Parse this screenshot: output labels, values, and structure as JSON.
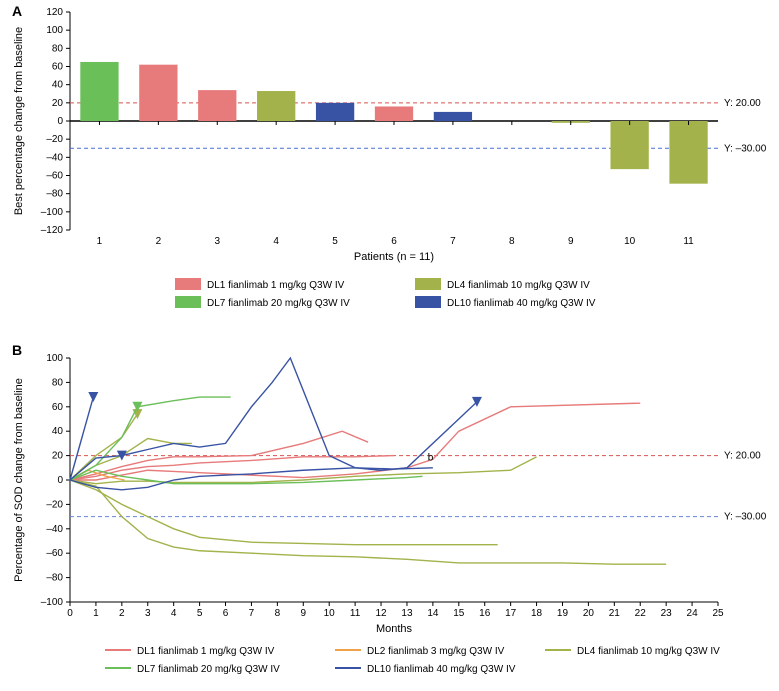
{
  "panelA": {
    "label": "A",
    "type": "bar",
    "x_title": "Patients (n = 11)",
    "y_title": "Best percentage change from baseline",
    "ylim": [
      -120,
      120
    ],
    "ytick_step": 20,
    "categories": [
      "1",
      "2",
      "3",
      "4",
      "5",
      "6",
      "7",
      "8",
      "9",
      "10",
      "11"
    ],
    "values": [
      65,
      62,
      34,
      33,
      20,
      16,
      10,
      0,
      -2,
      -53,
      -69
    ],
    "bar_colors": [
      "#6bbf59",
      "#e77a7a",
      "#e77a7a",
      "#a3b24a",
      "#3853a4",
      "#e77a7a",
      "#3853a4",
      "#a3b24a",
      "#a3b24a",
      "#a3b24a",
      "#a3b24a"
    ],
    "ref_lines": [
      {
        "y": 20,
        "label": "Y: 20.00",
        "color": "#d9534f"
      },
      {
        "y": -30,
        "label": "Y: –30.00",
        "color": "#4a6fd1"
      }
    ],
    "legend": [
      {
        "label": "DL1 fianlimab 1 mg/kg Q3W IV",
        "color": "#e77a7a"
      },
      {
        "label": "DL4 fianlimab 10 mg/kg Q3W IV",
        "color": "#a3b24a"
      },
      {
        "label": "DL7 fianlimab 20 mg/kg Q3W IV",
        "color": "#6bbf59"
      },
      {
        "label": "DL10 fianlimab 40 mg/kg Q3W IV",
        "color": "#3853a4"
      }
    ],
    "axis_fontsize": 10,
    "title_fontsize": 11,
    "background_color": "#ffffff",
    "grid_color": "#000000",
    "bar_width": 0.65
  },
  "panelB": {
    "label": "B",
    "type": "line",
    "x_title": "Months",
    "y_title": "Percentage of SOD change from baseline",
    "ylim": [
      -100,
      100
    ],
    "ytick_step": 20,
    "xlim": [
      0,
      25
    ],
    "xtick_step": 1,
    "annotation_b_x": 13.8,
    "annotation_b_y": 16,
    "ref_lines": [
      {
        "y": 20,
        "label": "Y: 20.00",
        "color": "#d9534f"
      },
      {
        "y": -30,
        "label": "Y: –30.00",
        "color": "#6a86d6"
      }
    ],
    "series": [
      {
        "color": "#e77a7a",
        "marker_at": [],
        "points": [
          [
            0,
            0
          ],
          [
            1,
            5
          ],
          [
            2,
            11
          ],
          [
            3,
            16
          ],
          [
            4,
            19
          ],
          [
            5,
            19
          ],
          [
            7,
            20
          ],
          [
            9,
            30
          ],
          [
            10.5,
            40
          ],
          [
            11.5,
            31
          ]
        ]
      },
      {
        "color": "#e77a7a",
        "marker_at": [],
        "points": [
          [
            0,
            0
          ],
          [
            1,
            0
          ],
          [
            2,
            4
          ],
          [
            3,
            8
          ],
          [
            4,
            7
          ],
          [
            5,
            6
          ],
          [
            7,
            4
          ],
          [
            9,
            2
          ],
          [
            11,
            5
          ],
          [
            13,
            10
          ],
          [
            14,
            17
          ],
          [
            15,
            40
          ],
          [
            17,
            60
          ],
          [
            22,
            63
          ]
        ]
      },
      {
        "color": "#e77a7a",
        "marker_at": [],
        "points": [
          [
            0,
            0
          ],
          [
            1,
            3
          ],
          [
            2,
            8
          ],
          [
            3,
            11
          ],
          [
            4,
            12
          ],
          [
            5,
            14
          ],
          [
            7,
            16
          ],
          [
            9,
            19
          ],
          [
            11,
            19
          ],
          [
            12.5,
            20
          ]
        ]
      },
      {
        "color": "#f0a24a",
        "marker_at": [],
        "points": [
          [
            0,
            0
          ],
          [
            0.7,
            8
          ],
          [
            1.4,
            3
          ],
          [
            2.1,
            0
          ]
        ]
      },
      {
        "color": "#a3b24a",
        "marker_at": [
          [
            2.6,
            54
          ]
        ],
        "points": [
          [
            0,
            0
          ],
          [
            1,
            20
          ],
          [
            2,
            35
          ],
          [
            2.6,
            54
          ]
        ]
      },
      {
        "color": "#a3b24a",
        "marker_at": [],
        "points": [
          [
            0,
            0
          ],
          [
            1,
            12
          ],
          [
            2,
            20
          ],
          [
            3,
            34
          ],
          [
            4,
            30
          ],
          [
            4.7,
            30
          ]
        ]
      },
      {
        "color": "#a3b24a",
        "marker_at": [],
        "points": [
          [
            0,
            0
          ],
          [
            1,
            -3
          ],
          [
            2,
            -1
          ],
          [
            3,
            -1
          ],
          [
            4,
            -2
          ],
          [
            5,
            -2
          ],
          [
            7,
            -2
          ],
          [
            9,
            0
          ],
          [
            11,
            3
          ],
          [
            13,
            5
          ],
          [
            15,
            6
          ],
          [
            17,
            8
          ],
          [
            18,
            19
          ]
        ]
      },
      {
        "color": "#a3b24a",
        "marker_at": [],
        "points": [
          [
            0,
            0
          ],
          [
            1,
            -8
          ],
          [
            2,
            -20
          ],
          [
            3,
            -30
          ],
          [
            4,
            -40
          ],
          [
            5,
            -47
          ],
          [
            7,
            -51
          ],
          [
            9,
            -52
          ],
          [
            11,
            -53
          ],
          [
            13,
            -53
          ],
          [
            15,
            -53
          ],
          [
            16.5,
            -53
          ]
        ]
      },
      {
        "color": "#a3b24a",
        "marker_at": [],
        "points": [
          [
            0,
            0
          ],
          [
            1,
            -5
          ],
          [
            2,
            -30
          ],
          [
            3,
            -48
          ],
          [
            4,
            -55
          ],
          [
            5,
            -58
          ],
          [
            7,
            -60
          ],
          [
            9,
            -62
          ],
          [
            11,
            -63
          ],
          [
            13,
            -65
          ],
          [
            15,
            -68
          ],
          [
            17,
            -68
          ],
          [
            19,
            -68
          ],
          [
            21,
            -69
          ],
          [
            23,
            -69
          ]
        ]
      },
      {
        "color": "#6bbf59",
        "marker_at": [
          [
            2.6,
            60
          ]
        ],
        "points": [
          [
            0,
            0
          ],
          [
            1,
            12
          ],
          [
            2,
            35
          ],
          [
            2.6,
            60
          ],
          [
            4,
            65
          ],
          [
            5,
            68
          ],
          [
            6.2,
            68
          ]
        ]
      },
      {
        "color": "#6bbf59",
        "marker_at": [],
        "points": [
          [
            0,
            0
          ],
          [
            1,
            8
          ],
          [
            2,
            3
          ],
          [
            3,
            0
          ],
          [
            4,
            -3
          ],
          [
            5,
            -3
          ],
          [
            7,
            -3
          ],
          [
            9,
            -2
          ],
          [
            11,
            0
          ],
          [
            13,
            2
          ],
          [
            13.6,
            3
          ]
        ]
      },
      {
        "color": "#3853a4",
        "marker_at": [
          [
            2,
            20
          ],
          [
            15.7,
            64
          ]
        ],
        "points": [
          [
            0,
            0
          ],
          [
            1,
            18
          ],
          [
            2,
            20
          ],
          [
            3,
            25
          ],
          [
            4,
            30
          ],
          [
            5,
            27
          ],
          [
            6,
            30
          ],
          [
            7,
            60
          ],
          [
            7.8,
            80
          ],
          [
            8.5,
            100
          ],
          [
            10,
            20
          ],
          [
            11,
            10
          ],
          [
            12,
            8
          ],
          [
            13,
            10
          ],
          [
            15.7,
            64
          ]
        ]
      },
      {
        "color": "#3853a4",
        "marker_at": [
          [
            0.9,
            68
          ]
        ],
        "points": [
          [
            0,
            0
          ],
          [
            0.9,
            68
          ]
        ]
      },
      {
        "color": "#3853a4",
        "marker_at": [],
        "points": [
          [
            0,
            0
          ],
          [
            1,
            -6
          ],
          [
            2,
            -8
          ],
          [
            3,
            -6
          ],
          [
            4,
            0
          ],
          [
            5,
            3
          ],
          [
            7,
            5
          ],
          [
            9,
            8
          ],
          [
            11,
            10
          ],
          [
            12.5,
            9
          ],
          [
            14,
            10
          ]
        ]
      }
    ],
    "legend": [
      {
        "label": "DL1 fianlimab 1 mg/kg Q3W IV",
        "color": "#e77a7a"
      },
      {
        "label": "DL2 fianlimab 3 mg/kg Q3W IV",
        "color": "#f0a24a"
      },
      {
        "label": "DL4 fianlimab 10 mg/kg Q3W IV",
        "color": "#a3b24a"
      },
      {
        "label": "DL7 fianlimab 20 mg/kg Q3W IV",
        "color": "#6bbf59"
      },
      {
        "label": "DL10 fianlimab 40 mg/kg Q3W IV",
        "color": "#3853a4"
      }
    ],
    "axis_fontsize": 10,
    "title_fontsize": 11,
    "background_color": "#ffffff",
    "marker_size": 5
  }
}
